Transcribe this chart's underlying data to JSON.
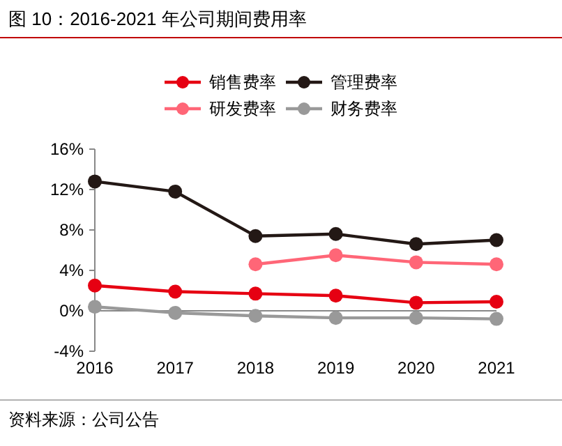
{
  "chart_data": {
    "type": "line",
    "title": "图 10：2016-2021 年公司期间费用率",
    "annotations": [
      "资料来源：公司公告"
    ],
    "categories": [
      "2016",
      "2017",
      "2018",
      "2019",
      "2020",
      "2021"
    ],
    "series": [
      {
        "name": "销售费率",
        "color": "#e60012",
        "values": [
          2.5,
          1.9,
          1.7,
          1.5,
          0.8,
          0.9
        ]
      },
      {
        "name": "管理费率",
        "color": "#231815",
        "values": [
          12.8,
          11.8,
          7.4,
          7.6,
          6.6,
          7.0
        ]
      },
      {
        "name": "研发费率",
        "color": "#ff6677",
        "values": [
          null,
          null,
          4.6,
          5.5,
          4.8,
          4.6
        ]
      },
      {
        "name": "财务费率",
        "color": "#999999",
        "values": [
          0.4,
          -0.2,
          -0.5,
          -0.7,
          -0.7,
          -0.8
        ]
      }
    ],
    "ylim": [
      -4,
      16
    ],
    "yticks": [
      {
        "value": -4,
        "label": "-4%"
      },
      {
        "value": 0,
        "label": "0%"
      },
      {
        "value": 4,
        "label": "4%"
      },
      {
        "value": 8,
        "label": "8%"
      },
      {
        "value": 12,
        "label": "12%"
      },
      {
        "value": 16,
        "label": "16%"
      }
    ],
    "ref_lines": [
      {
        "axis": "y",
        "value": 0,
        "color": "#888888"
      }
    ],
    "legend": "top",
    "marker": "circle",
    "line_style": "solid"
  }
}
